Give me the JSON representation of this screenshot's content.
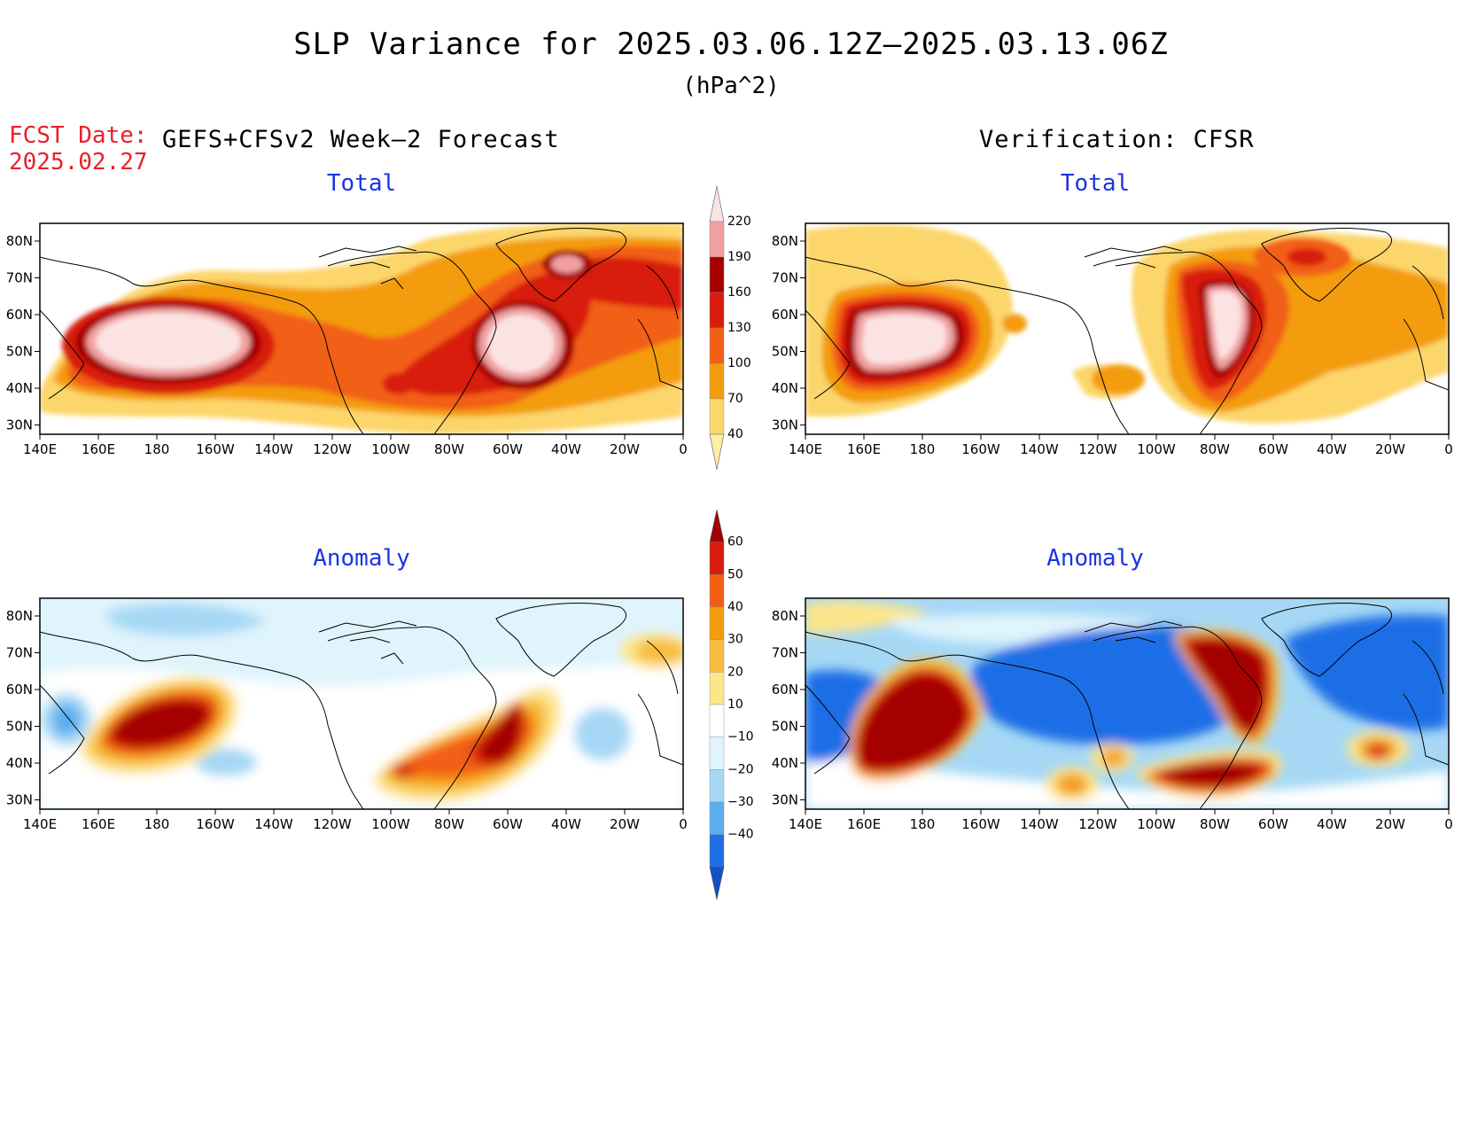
{
  "title": "SLP Variance for 2025.03.06.12Z–2025.03.13.06Z",
  "units": "(hPa^2)",
  "fcst_date": {
    "label": "FCST Date:",
    "value": "2025.02.27"
  },
  "left_header": "GEFS+CFSv2 Week–2 Forecast",
  "right_header": "Verification: CFSR",
  "panels": {
    "fc_total": "Total",
    "vf_total": "Total",
    "fc_anom": "Anomaly",
    "vf_anom": "Anomaly"
  },
  "lat_ticks": [
    "80N",
    "70N",
    "60N",
    "50N",
    "40N",
    "30N"
  ],
  "lon_ticks": [
    "140E",
    "160E",
    "180",
    "160W",
    "140W",
    "120W",
    "100W",
    "80W",
    "60W",
    "40W",
    "20W",
    "0"
  ],
  "total_colorbar": {
    "labels": [
      "220",
      "190",
      "160",
      "130",
      "100",
      "70",
      "40"
    ],
    "colors": [
      "#fce3e3",
      "#f0a0a0",
      "#a50000",
      "#d81c0e",
      "#f25f14",
      "#f39c0c",
      "#fcd66a",
      "#ffeea6"
    ]
  },
  "anom_colorbar": {
    "labels": [
      "60",
      "50",
      "40",
      "30",
      "20",
      "10",
      "−10",
      "−20",
      "−30",
      "−40"
    ],
    "colors": [
      "#a50000",
      "#d81c0e",
      "#f25f14",
      "#f39c0c",
      "#f8bd40",
      "#fde58a",
      "#ffffff",
      "#dff4fc",
      "#a6d8f5",
      "#5aaeee",
      "#1e6ee6",
      "#1550c8"
    ]
  },
  "colors": {
    "title_red": "#e8202a",
    "panel_blue": "#1a33e6"
  }
}
